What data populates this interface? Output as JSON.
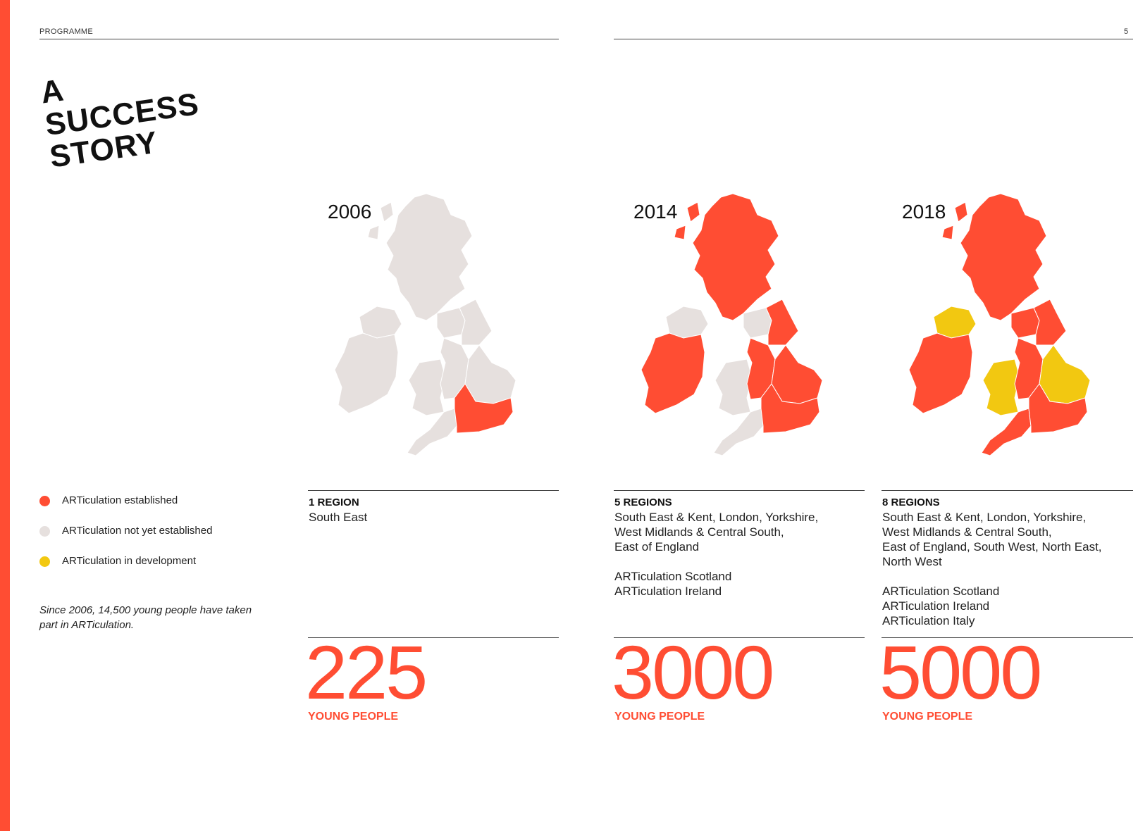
{
  "colors": {
    "established": "#ff4d33",
    "not_established": "#e6e0de",
    "development": "#f2c811",
    "accent": "#ff4d33"
  },
  "header": {
    "section_label": "PROGRAMME",
    "page_number": "5"
  },
  "title": {
    "line1": "A",
    "line2": "SUCCESS",
    "line3": "STORY"
  },
  "legend": [
    {
      "label": "ARTiculation established",
      "status": "established"
    },
    {
      "label": "ARTiculation not yet established",
      "status": "not_established"
    },
    {
      "label": "ARTiculation in development",
      "status": "development"
    }
  ],
  "note": "Since 2006, 14,500 young people have taken part in ARTiculation.",
  "periods": [
    {
      "year": "2006",
      "regions_title": "1 REGION",
      "regions_text": "South East",
      "count": "225",
      "count_label": "YOUNG PEOPLE",
      "map_regions": {
        "ireland": "not_established",
        "northern_ireland": "not_established",
        "scotland": "not_established",
        "north": "not_established",
        "wales": "not_established",
        "midlands": "not_established",
        "yorkshire": "not_established",
        "east": "not_established",
        "south_west": "not_established",
        "south_east": "established"
      }
    },
    {
      "year": "2014",
      "regions_title": "5 REGIONS",
      "regions_text": "South East & Kent, London, Yorkshire,\nWest Midlands & Central South,\nEast of England\n\nARTiculation Scotland\nARTiculation Ireland",
      "count": "3000",
      "count_label": "YOUNG PEOPLE",
      "map_regions": {
        "ireland": "established",
        "northern_ireland": "not_established",
        "scotland": "established",
        "north": "not_established",
        "wales": "not_established",
        "midlands": "established",
        "yorkshire": "established",
        "east": "established",
        "south_west": "not_established",
        "south_east": "established"
      }
    },
    {
      "year": "2018",
      "regions_title": "8 REGIONS",
      "regions_text": "South East & Kent, London, Yorkshire,\nWest Midlands & Central South,\nEast of England, South West, North East,\nNorth West\n\nARTiculation Scotland\nARTiculation Ireland\nARTiculation Italy",
      "count": "5000",
      "count_label": "YOUNG PEOPLE",
      "map_regions": {
        "ireland": "established",
        "northern_ireland": "development",
        "scotland": "established",
        "north": "established",
        "wales": "development",
        "midlands": "established",
        "yorkshire": "established",
        "east": "development",
        "south_west": "established",
        "south_east": "established"
      }
    }
  ]
}
